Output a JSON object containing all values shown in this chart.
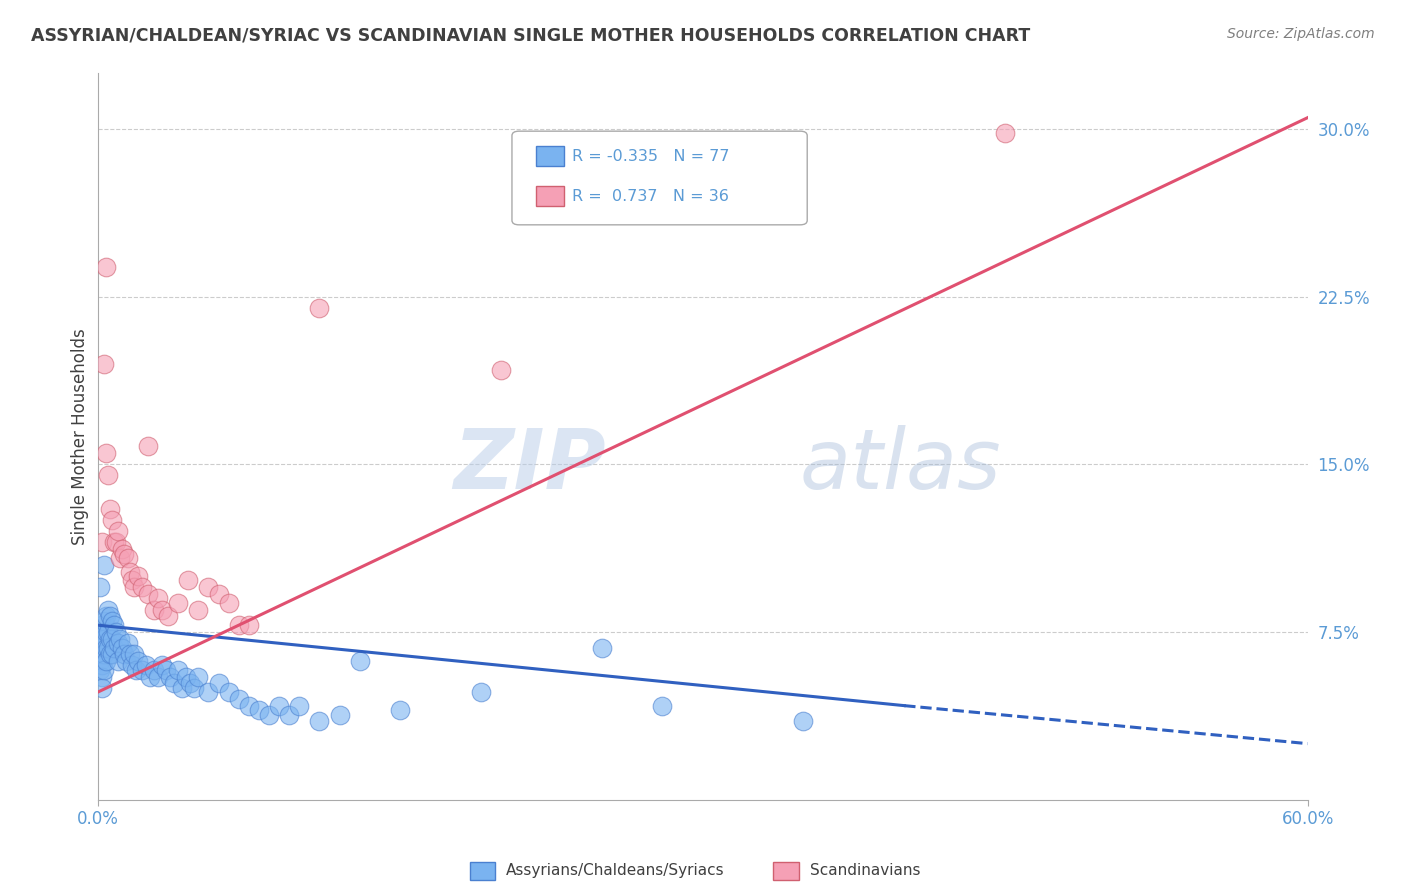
{
  "title": "ASSYRIAN/CHALDEAN/SYRIAC VS SCANDINAVIAN SINGLE MOTHER HOUSEHOLDS CORRELATION CHART",
  "source": "Source: ZipAtlas.com",
  "ylabel": "Single Mother Households",
  "ytick_labels": [
    "7.5%",
    "15.0%",
    "22.5%",
    "30.0%"
  ],
  "ytick_values": [
    0.075,
    0.15,
    0.225,
    0.3
  ],
  "xtick_labels": [
    "0.0%",
    "60.0%"
  ],
  "xtick_values": [
    0.0,
    0.6
  ],
  "xlim": [
    0.0,
    0.6
  ],
  "ylim": [
    0.0,
    0.325
  ],
  "legend_entries": [
    {
      "label": "Assyrians/Chaldeans/Syriacs",
      "R": -0.335,
      "N": 77,
      "color": "#7ab3f0",
      "edge": "#4a80d0"
    },
    {
      "label": "Scandinavians",
      "R": 0.737,
      "N": 36,
      "color": "#f5a0b5",
      "edge": "#d06070"
    }
  ],
  "assyrian_points": [
    [
      0.001,
      0.075
    ],
    [
      0.001,
      0.068
    ],
    [
      0.001,
      0.062
    ],
    [
      0.001,
      0.058
    ],
    [
      0.002,
      0.078
    ],
    [
      0.002,
      0.072
    ],
    [
      0.002,
      0.065
    ],
    [
      0.002,
      0.06
    ],
    [
      0.002,
      0.055
    ],
    [
      0.002,
      0.05
    ],
    [
      0.003,
      0.08
    ],
    [
      0.003,
      0.072
    ],
    [
      0.003,
      0.065
    ],
    [
      0.003,
      0.058
    ],
    [
      0.004,
      0.082
    ],
    [
      0.004,
      0.075
    ],
    [
      0.004,
      0.068
    ],
    [
      0.004,
      0.062
    ],
    [
      0.005,
      0.085
    ],
    [
      0.005,
      0.075
    ],
    [
      0.005,
      0.068
    ],
    [
      0.006,
      0.082
    ],
    [
      0.006,
      0.072
    ],
    [
      0.006,
      0.065
    ],
    [
      0.007,
      0.08
    ],
    [
      0.007,
      0.072
    ],
    [
      0.007,
      0.065
    ],
    [
      0.008,
      0.078
    ],
    [
      0.008,
      0.068
    ],
    [
      0.009,
      0.075
    ],
    [
      0.01,
      0.07
    ],
    [
      0.01,
      0.062
    ],
    [
      0.011,
      0.072
    ],
    [
      0.012,
      0.068
    ],
    [
      0.013,
      0.065
    ],
    [
      0.014,
      0.062
    ],
    [
      0.015,
      0.07
    ],
    [
      0.016,
      0.065
    ],
    [
      0.017,
      0.06
    ],
    [
      0.018,
      0.065
    ],
    [
      0.019,
      0.058
    ],
    [
      0.02,
      0.062
    ],
    [
      0.022,
      0.058
    ],
    [
      0.024,
      0.06
    ],
    [
      0.026,
      0.055
    ],
    [
      0.028,
      0.058
    ],
    [
      0.03,
      0.055
    ],
    [
      0.032,
      0.06
    ],
    [
      0.034,
      0.058
    ],
    [
      0.036,
      0.055
    ],
    [
      0.038,
      0.052
    ],
    [
      0.04,
      0.058
    ],
    [
      0.042,
      0.05
    ],
    [
      0.044,
      0.055
    ],
    [
      0.046,
      0.052
    ],
    [
      0.048,
      0.05
    ],
    [
      0.05,
      0.055
    ],
    [
      0.055,
      0.048
    ],
    [
      0.06,
      0.052
    ],
    [
      0.065,
      0.048
    ],
    [
      0.07,
      0.045
    ],
    [
      0.075,
      0.042
    ],
    [
      0.08,
      0.04
    ],
    [
      0.085,
      0.038
    ],
    [
      0.09,
      0.042
    ],
    [
      0.095,
      0.038
    ],
    [
      0.1,
      0.042
    ],
    [
      0.11,
      0.035
    ],
    [
      0.12,
      0.038
    ],
    [
      0.13,
      0.062
    ],
    [
      0.15,
      0.04
    ],
    [
      0.19,
      0.048
    ],
    [
      0.25,
      0.068
    ],
    [
      0.28,
      0.042
    ],
    [
      0.35,
      0.035
    ],
    [
      0.001,
      0.095
    ],
    [
      0.003,
      0.105
    ]
  ],
  "scandinavian_points": [
    [
      0.002,
      0.115
    ],
    [
      0.003,
      0.195
    ],
    [
      0.004,
      0.155
    ],
    [
      0.005,
      0.145
    ],
    [
      0.006,
      0.13
    ],
    [
      0.007,
      0.125
    ],
    [
      0.008,
      0.115
    ],
    [
      0.009,
      0.115
    ],
    [
      0.01,
      0.12
    ],
    [
      0.011,
      0.108
    ],
    [
      0.012,
      0.112
    ],
    [
      0.013,
      0.11
    ],
    [
      0.015,
      0.108
    ],
    [
      0.016,
      0.102
    ],
    [
      0.017,
      0.098
    ],
    [
      0.018,
      0.095
    ],
    [
      0.02,
      0.1
    ],
    [
      0.022,
      0.095
    ],
    [
      0.025,
      0.092
    ],
    [
      0.028,
      0.085
    ],
    [
      0.03,
      0.09
    ],
    [
      0.032,
      0.085
    ],
    [
      0.035,
      0.082
    ],
    [
      0.04,
      0.088
    ],
    [
      0.045,
      0.098
    ],
    [
      0.05,
      0.085
    ],
    [
      0.055,
      0.095
    ],
    [
      0.06,
      0.092
    ],
    [
      0.065,
      0.088
    ],
    [
      0.07,
      0.078
    ],
    [
      0.075,
      0.078
    ],
    [
      0.11,
      0.22
    ],
    [
      0.2,
      0.192
    ],
    [
      0.45,
      0.298
    ],
    [
      0.004,
      0.238
    ],
    [
      0.025,
      0.158
    ]
  ],
  "blue_line_solid": {
    "x0": 0.0,
    "y0": 0.078,
    "x1": 0.4,
    "y1": 0.042
  },
  "blue_line_dashed": {
    "x0": 0.4,
    "y0": 0.042,
    "x1": 0.6,
    "y1": 0.025
  },
  "pink_line": {
    "x0": 0.0,
    "y0": 0.048,
    "x1": 0.6,
    "y1": 0.305
  },
  "watermark_zip": "ZIP",
  "watermark_atlas": "atlas",
  "background_color": "#ffffff",
  "grid_color": "#cccccc",
  "title_color": "#404040",
  "axis_tick_color": "#5b9bd5",
  "source_color": "#808080"
}
